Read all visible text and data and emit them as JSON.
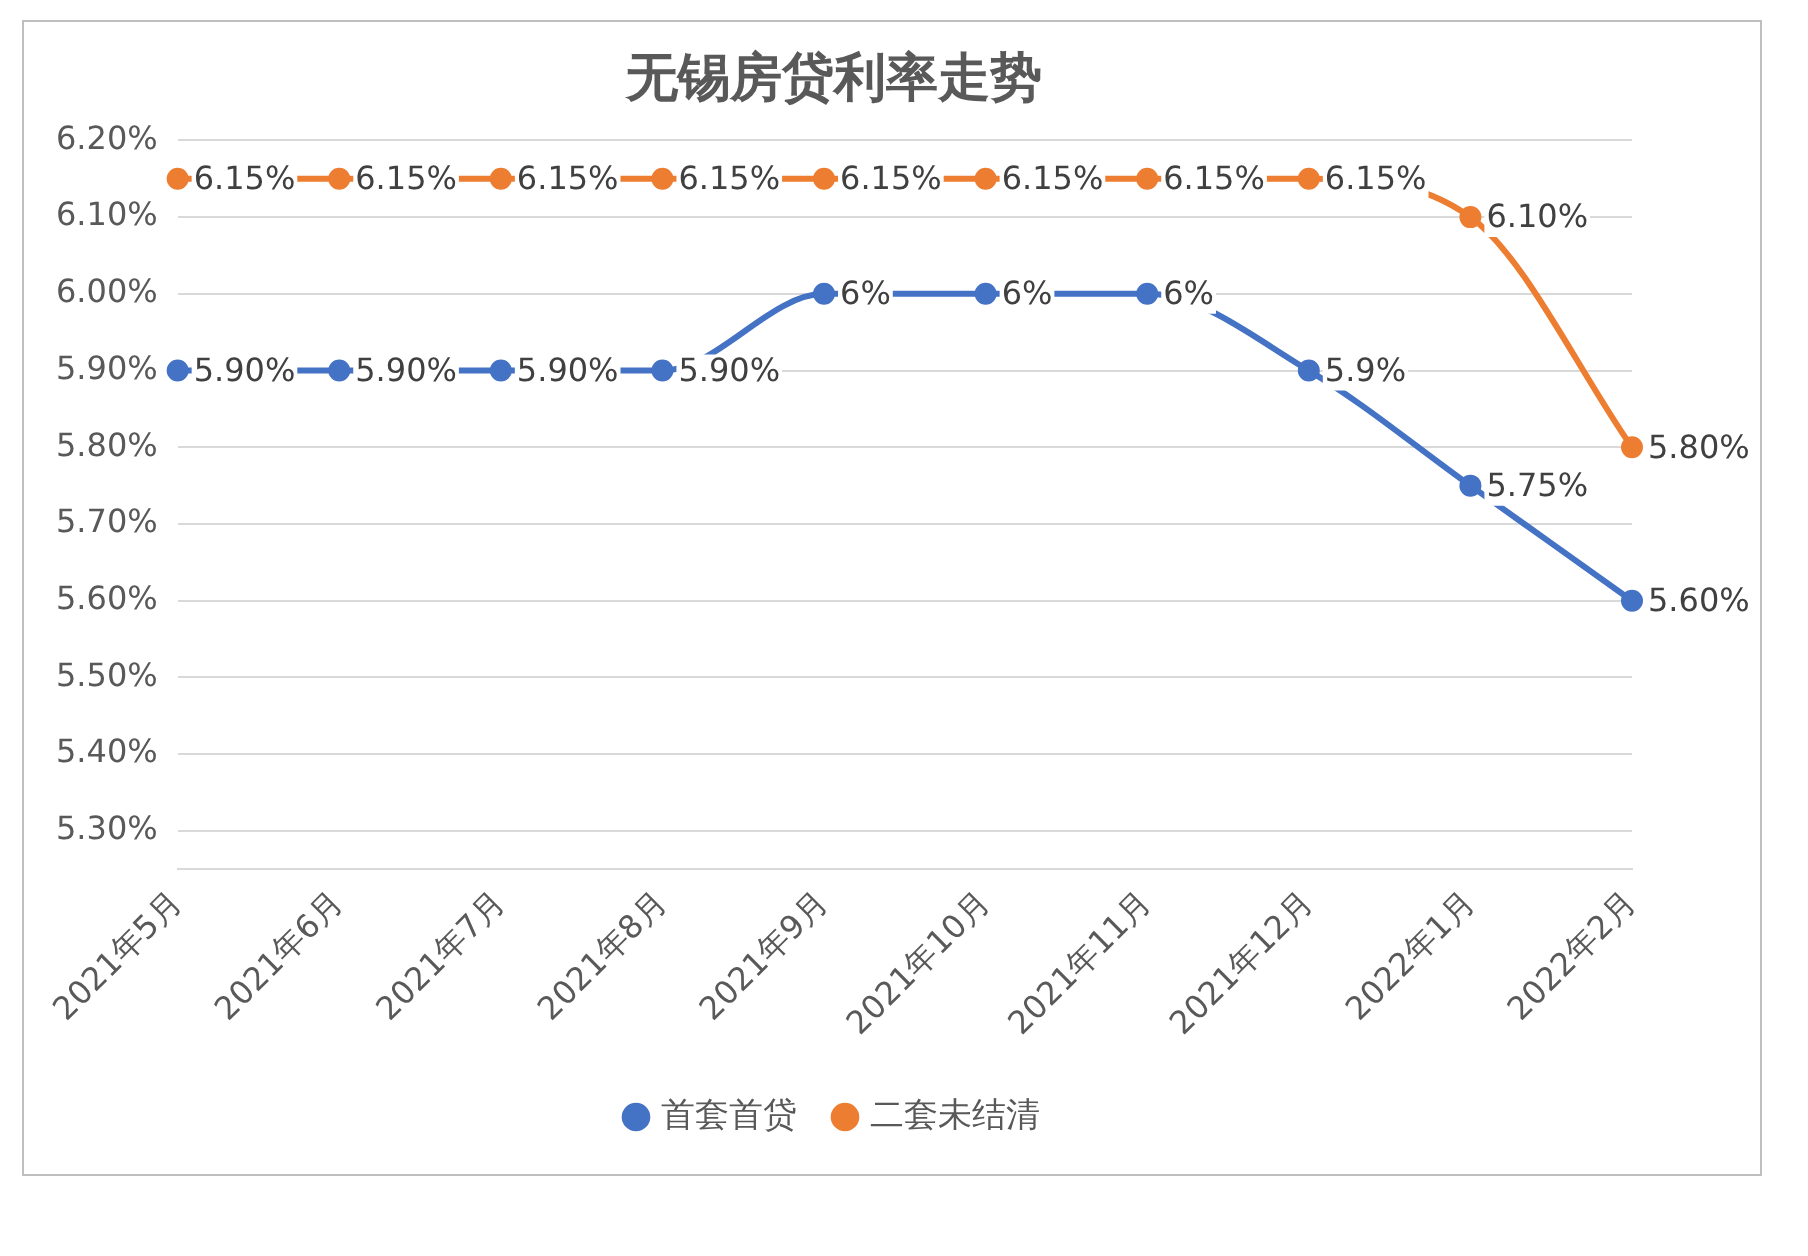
{
  "chart_data": {
    "type": "line",
    "title": "无锡房贷利率走势",
    "categories": [
      "2021年5月",
      "2021年6月",
      "2021年7月",
      "2021年8月",
      "2021年9月",
      "2021年10月",
      "2021年11月",
      "2021年12月",
      "2022年1月",
      "2022年2月"
    ],
    "series": [
      {
        "name": "首套首贷",
        "color": "#4472c4",
        "values": [
          5.9,
          5.9,
          5.9,
          5.9,
          6.0,
          6.0,
          6.0,
          5.9,
          5.75,
          5.6
        ],
        "value_labels": [
          "5.90%",
          "5.90%",
          "5.90%",
          "5.90%",
          "6%",
          "6%",
          "6%",
          "5.9%",
          "5.75%",
          "5.60%"
        ]
      },
      {
        "name": "二套未结清",
        "color": "#ed7d31",
        "values": [
          6.15,
          6.15,
          6.15,
          6.15,
          6.15,
          6.15,
          6.15,
          6.15,
          6.1,
          5.8
        ],
        "value_labels": [
          "6.15%",
          "6.15%",
          "6.15%",
          "6.15%",
          "6.15%",
          "6.15%",
          "6.15%",
          "6.15%",
          "6.10%",
          "5.80%"
        ]
      }
    ],
    "ylim": [
      5.25,
      6.2
    ],
    "yticks": [
      {
        "value": 5.3,
        "label": "5.30%"
      },
      {
        "value": 5.4,
        "label": "5.40%"
      },
      {
        "value": 5.5,
        "label": "5.50%"
      },
      {
        "value": 5.6,
        "label": "5.60%"
      },
      {
        "value": 5.7,
        "label": "5.70%"
      },
      {
        "value": 5.8,
        "label": "5.80%"
      },
      {
        "value": 5.9,
        "label": "5.90%"
      },
      {
        "value": 6.0,
        "label": "6.00%"
      },
      {
        "value": 6.1,
        "label": "6.10%"
      },
      {
        "value": 6.2,
        "label": "6.20%"
      }
    ],
    "grid": "y",
    "legend": "bottom",
    "marker": "circle",
    "line_style": "solid"
  }
}
